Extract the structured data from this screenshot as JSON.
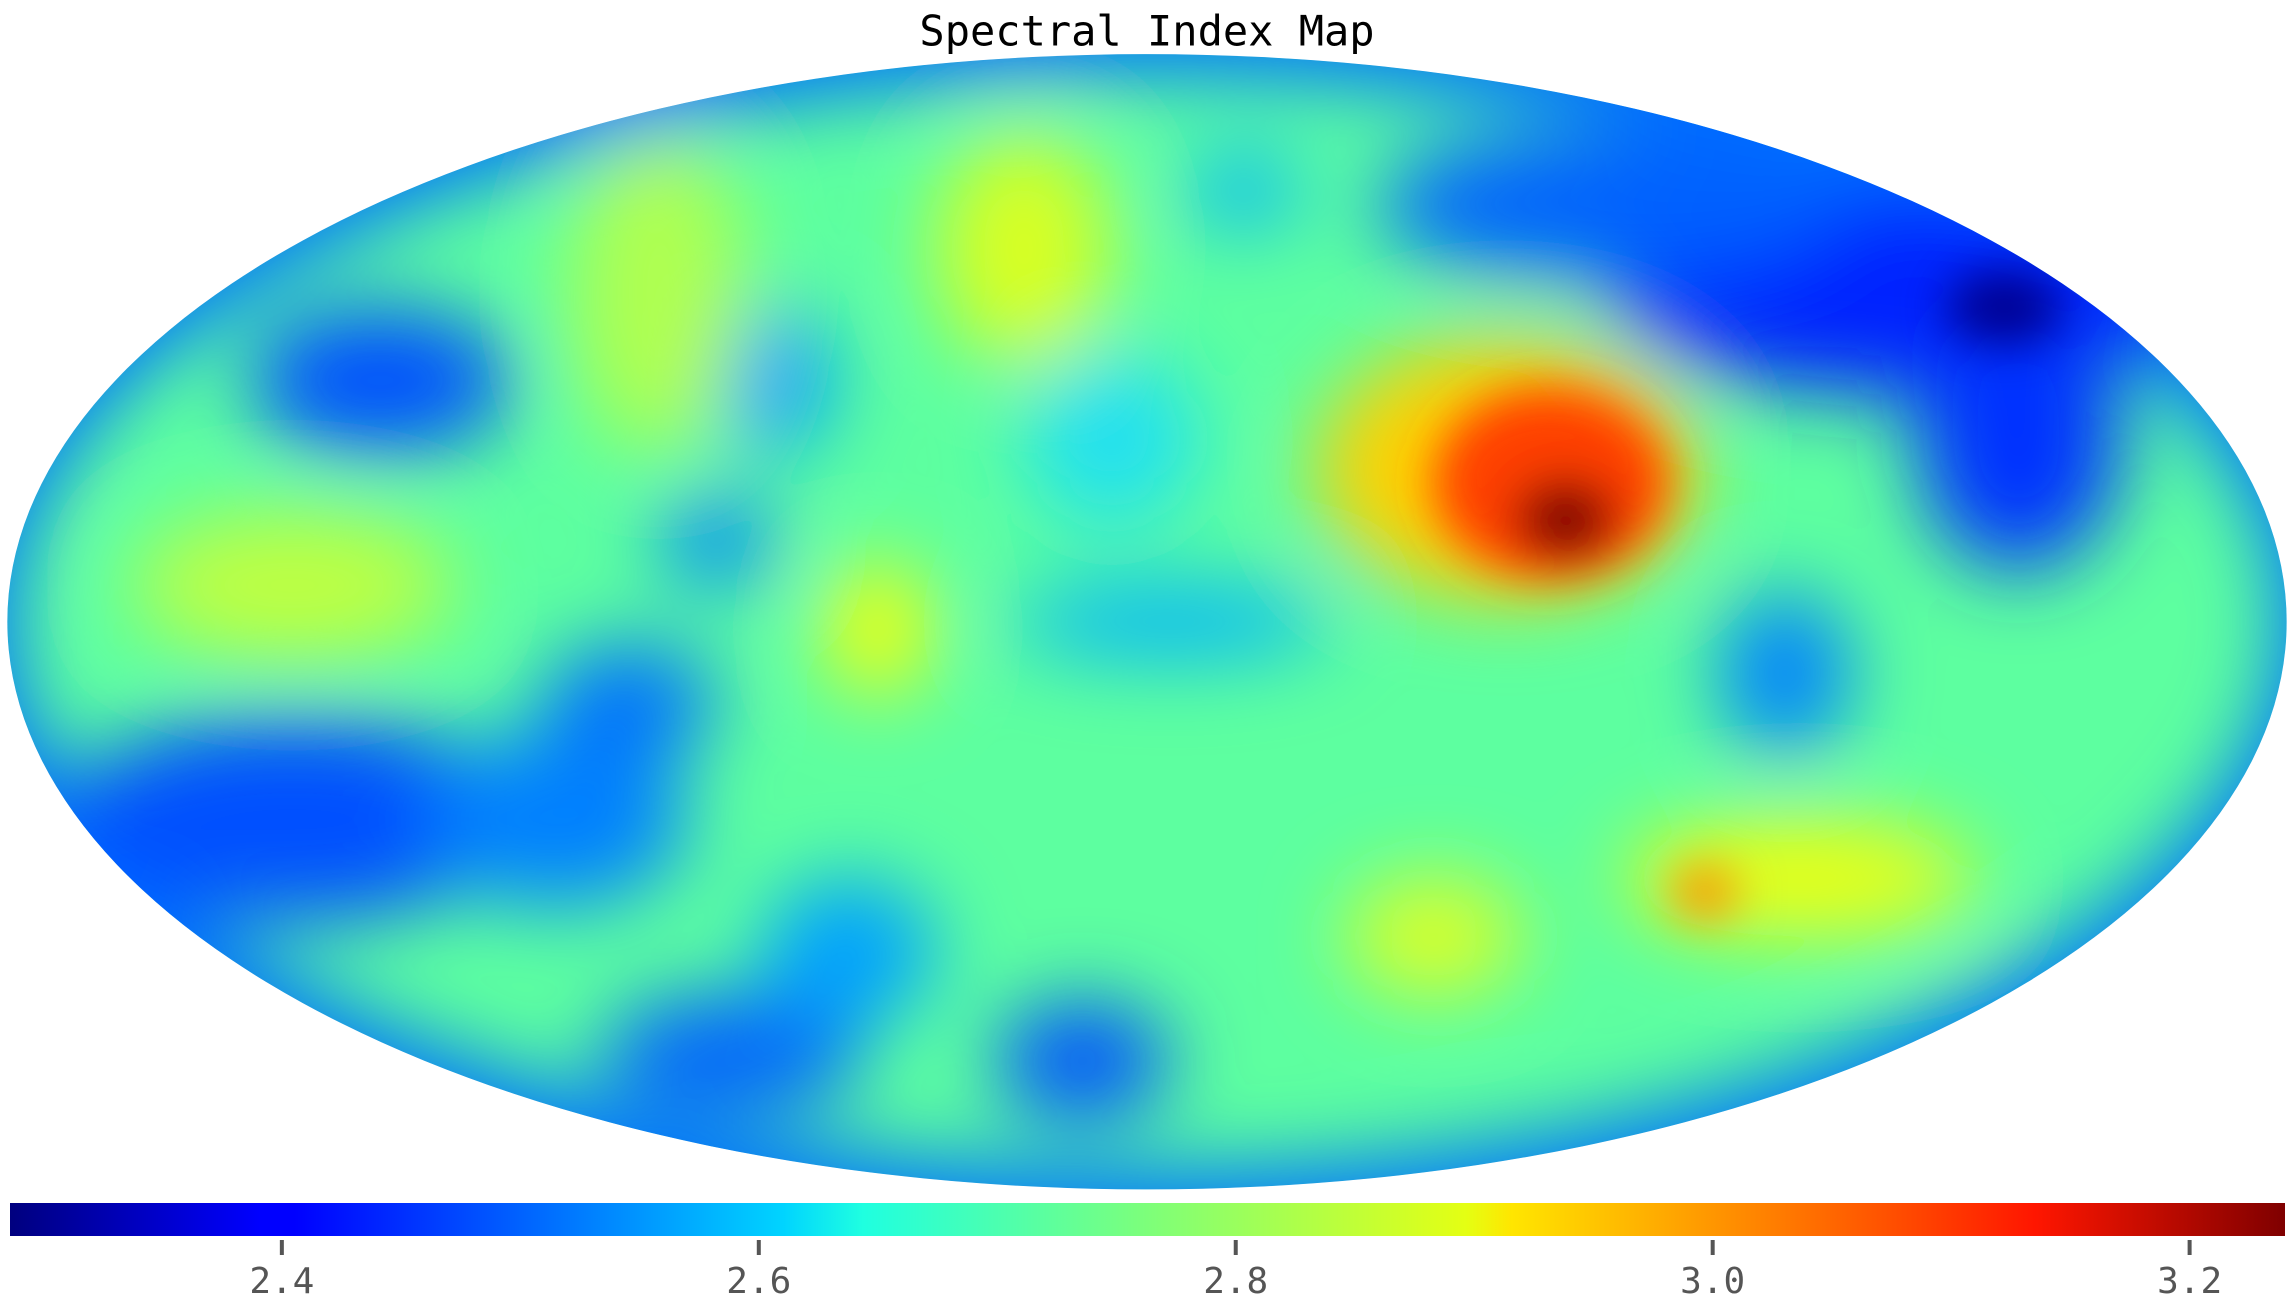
{
  "chart_data": {
    "type": "heatmap",
    "projection": "mollweide",
    "title": "Spectral Index Map",
    "colormap": "jet",
    "zlim": [
      2.286,
      3.24
    ],
    "zticks": [
      2.4,
      2.6,
      2.8,
      {
        "value": 3.0,
        "label": "3.0"
      },
      3.2
    ]
  }
}
